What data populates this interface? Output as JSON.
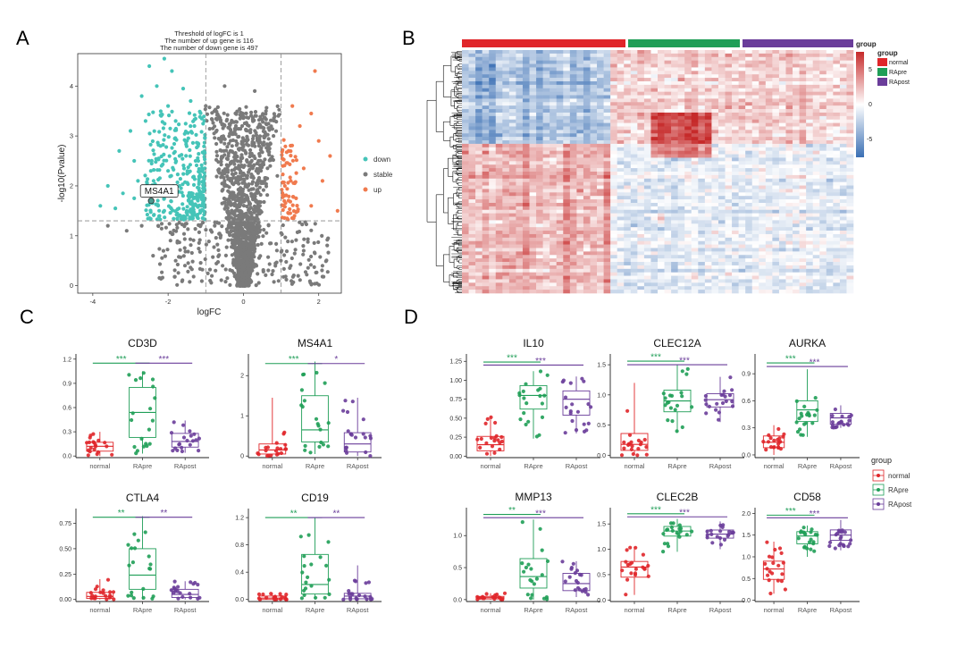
{
  "panels": {
    "A": {
      "letter": "A"
    },
    "B": {
      "letter": "B"
    },
    "C": {
      "letter": "C"
    },
    "D": {
      "letter": "D"
    }
  },
  "colors": {
    "normal": "#e0262a",
    "RApre": "#1f9e57",
    "RApost": "#6a3d9a",
    "down": "#45c4b8",
    "stable": "#7a7a7a",
    "up": "#f07a4e",
    "heat_low": "#3a6fb4",
    "heat_mid": "#ffffff",
    "heat_high": "#c62a2a"
  },
  "chart_data": [
    {
      "id": "volcano",
      "type": "scatter",
      "title_lines": [
        "Threshold of logFC is 1",
        "The number of up gene is 116",
        "The number of down gene is 497"
      ],
      "xlabel": "logFC",
      "ylabel": "-log10(Pvalue)",
      "xlim": [
        -4.4,
        2.6
      ],
      "ylim": [
        -0.15,
        4.65
      ],
      "xticks": [
        -4,
        -2,
        0,
        2
      ],
      "yticks": [
        0,
        1,
        2,
        3,
        4
      ],
      "thresholds": {
        "logFC": [
          -1,
          1
        ],
        "pvalue_line": 1.3
      },
      "legend": {
        "position": "right",
        "entries": [
          "down",
          "stable",
          "up"
        ]
      },
      "annotation": {
        "label": "MS4A1",
        "x": -2.45,
        "y": 1.7
      },
      "counts": {
        "up": 116,
        "down": 497
      },
      "points": {
        "down": [
          [
            -2.5,
            4.4
          ],
          [
            -2.1,
            4.55
          ],
          [
            -1.9,
            4.3
          ],
          [
            -2.3,
            4.0
          ],
          [
            -1.6,
            3.95
          ],
          [
            -2.7,
            3.8
          ],
          [
            -2.0,
            3.6
          ],
          [
            -1.4,
            3.7
          ],
          [
            -3.0,
            3.1
          ],
          [
            -2.6,
            3.3
          ],
          [
            -1.8,
            3.3
          ],
          [
            -1.3,
            3.2
          ],
          [
            -3.3,
            2.7
          ],
          [
            -2.9,
            2.5
          ],
          [
            -2.2,
            2.8
          ],
          [
            -1.5,
            2.9
          ],
          [
            -3.6,
            2.0
          ],
          [
            -3.2,
            1.85
          ],
          [
            -2.8,
            2.1
          ],
          [
            -2.0,
            2.3
          ],
          [
            -1.2,
            2.5
          ],
          [
            -3.8,
            1.6
          ],
          [
            -3.4,
            1.55
          ],
          [
            -2.9,
            1.75
          ],
          [
            -2.4,
            1.9
          ],
          [
            -1.7,
            2.0
          ],
          [
            -1.1,
            1.8
          ],
          [
            -2.1,
            1.5
          ],
          [
            -1.4,
            1.5
          ]
        ],
        "stable": [
          [
            -3.6,
            1.2
          ],
          [
            -3.1,
            1.1
          ],
          [
            -2.7,
            1.2
          ],
          [
            -1.0,
            3.6
          ],
          [
            -0.5,
            4.0
          ],
          [
            -0.2,
            3.2
          ],
          [
            0.3,
            3.9
          ],
          [
            0.6,
            3.5
          ],
          [
            0.8,
            3.0
          ],
          [
            -0.4,
            2.6
          ],
          [
            0.4,
            2.5
          ],
          [
            0.9,
            2.2
          ],
          [
            -2.4,
            0.6
          ],
          [
            -1.8,
            0.5
          ],
          [
            1.6,
            0.7
          ],
          [
            2.1,
            0.4
          ]
        ],
        "up": [
          [
            1.3,
            3.6
          ],
          [
            1.5,
            3.2
          ],
          [
            1.8,
            3.45
          ],
          [
            2.0,
            2.9
          ],
          [
            2.3,
            2.6
          ],
          [
            1.2,
            2.7
          ],
          [
            1.6,
            2.35
          ],
          [
            2.1,
            2.1
          ],
          [
            1.1,
            2.0
          ],
          [
            1.4,
            1.75
          ],
          [
            1.8,
            1.6
          ],
          [
            2.5,
            1.5
          ],
          [
            1.9,
            4.3
          ],
          [
            1.2,
            1.45
          ]
        ]
      }
    },
    {
      "id": "heatmap",
      "type": "heatmap",
      "groups": [
        "normal",
        "RApre",
        "RApost"
      ],
      "legend": {
        "title": "group",
        "position": "right",
        "entries": [
          "normal",
          "RApre",
          "RApost"
        ]
      },
      "scale": {
        "ticks": [
          "5",
          "0",
          "-5"
        ],
        "range": [
          -7,
          7
        ]
      },
      "blocks": [
        {
          "rows": [
            0,
            0.38
          ],
          "cols": [
            0,
            0.38
          ],
          "value": -1.5
        },
        {
          "rows": [
            0.38,
            1.0
          ],
          "cols": [
            0,
            0.38
          ],
          "value": 1.2
        },
        {
          "rows": [
            0.38,
            1.0
          ],
          "cols": [
            0.38,
            1.0
          ],
          "value": -0.4
        },
        {
          "rows": [
            0,
            0.38
          ],
          "cols": [
            0.38,
            1.0
          ],
          "value": 0.9
        },
        {
          "rows": [
            0.26,
            0.44
          ],
          "cols": [
            0.48,
            0.63
          ],
          "value": 2.6
        }
      ]
    },
    {
      "id": "CD3D",
      "type": "box",
      "panel": "C",
      "title": "CD3D",
      "categories": [
        "normal",
        "RApre",
        "RApost"
      ],
      "ylim": [
        -0.02,
        1.22
      ],
      "yticks": [
        0.0,
        0.3,
        0.6,
        0.9,
        1.2
      ],
      "tick_labels": [
        "0.0",
        "0.3",
        "0.6",
        "0.9",
        "1.2"
      ],
      "boxes": [
        {
          "group": "normal",
          "q1": 0.06,
          "median": 0.12,
          "q3": 0.17,
          "lo": 0.0,
          "hi": 0.3
        },
        {
          "group": "RApre",
          "q1": 0.23,
          "median": 0.54,
          "q3": 0.85,
          "lo": 0.03,
          "hi": 1.05
        },
        {
          "group": "RApost",
          "q1": 0.11,
          "median": 0.18,
          "q3": 0.28,
          "lo": 0.04,
          "hi": 0.44
        }
      ],
      "sig": [
        {
          "from": "normal",
          "to": "RApre",
          "label": "***",
          "y": 1.15,
          "group": "RApre"
        },
        {
          "from": "RApre",
          "to": "RApost",
          "label": "***",
          "y": 1.15,
          "group": "RApost"
        }
      ]
    },
    {
      "id": "MS4A1",
      "type": "box",
      "panel": "C",
      "title": "MS4A1",
      "categories": [
        "normal",
        "RApre",
        "RApost"
      ],
      "ylim": [
        -0.04,
        2.45
      ],
      "yticks": [
        0,
        1,
        2
      ],
      "tick_labels": [
        "0",
        "1",
        "2"
      ],
      "boxes": [
        {
          "group": "normal",
          "q1": 0.05,
          "median": 0.15,
          "q3": 0.3,
          "lo": 0.0,
          "hi": 1.45
        },
        {
          "group": "RApre",
          "q1": 0.35,
          "median": 0.65,
          "q3": 1.5,
          "lo": 0.05,
          "hi": 2.35
        },
        {
          "group": "RApost",
          "q1": 0.1,
          "median": 0.3,
          "q3": 0.58,
          "lo": 0.0,
          "hi": 1.45
        }
      ],
      "sig": [
        {
          "from": "normal",
          "to": "RApre",
          "label": "***",
          "y": 2.3,
          "group": "RApre"
        },
        {
          "from": "RApre",
          "to": "RApost",
          "label": "*",
          "y": 2.3,
          "group": "RApost"
        }
      ]
    },
    {
      "id": "CTLA4",
      "type": "box",
      "panel": "C",
      "title": "CTLA4",
      "categories": [
        "normal",
        "RApre",
        "RApost"
      ],
      "ylim": [
        -0.02,
        0.86
      ],
      "yticks": [
        0.0,
        0.25,
        0.5,
        0.75
      ],
      "tick_labels": [
        "0.00",
        "0.25",
        "0.50",
        "0.75"
      ],
      "boxes": [
        {
          "group": "normal",
          "q1": 0.01,
          "median": 0.03,
          "q3": 0.07,
          "lo": 0.0,
          "hi": 0.2
        },
        {
          "group": "RApre",
          "q1": 0.1,
          "median": 0.24,
          "q3": 0.5,
          "lo": 0.0,
          "hi": 0.82
        },
        {
          "group": "RApost",
          "q1": 0.02,
          "median": 0.05,
          "q3": 0.1,
          "lo": 0.0,
          "hi": 0.18
        }
      ],
      "sig": [
        {
          "from": "normal",
          "to": "RApre",
          "label": "**",
          "y": 0.81,
          "group": "RApre"
        },
        {
          "from": "RApre",
          "to": "RApost",
          "label": "**",
          "y": 0.81,
          "group": "RApost"
        }
      ]
    },
    {
      "id": "CD19",
      "type": "box",
      "panel": "C",
      "title": "CD19",
      "categories": [
        "normal",
        "RApre",
        "RApost"
      ],
      "ylim": [
        -0.03,
        1.28
      ],
      "yticks": [
        0.0,
        0.4,
        0.8,
        1.2
      ],
      "tick_labels": [
        "0.0",
        "0.4",
        "0.8",
        "1.2"
      ],
      "boxes": [
        {
          "group": "normal",
          "q1": 0.0,
          "median": 0.02,
          "q3": 0.05,
          "lo": 0.0,
          "hi": 0.1
        },
        {
          "group": "RApre",
          "q1": 0.08,
          "median": 0.22,
          "q3": 0.66,
          "lo": 0.0,
          "hi": 1.2
        },
        {
          "group": "RApost",
          "q1": 0.01,
          "median": 0.05,
          "q3": 0.09,
          "lo": 0.0,
          "hi": 0.5
        }
      ],
      "sig": [
        {
          "from": "normal",
          "to": "RApre",
          "label": "**",
          "y": 1.2,
          "group": "RApre"
        },
        {
          "from": "RApre",
          "to": "RApost",
          "label": "**",
          "y": 1.2,
          "group": "RApost"
        }
      ]
    },
    {
      "id": "IL10",
      "type": "box",
      "panel": "D",
      "title": "IL10",
      "categories": [
        "normal",
        "RApre",
        "RApost"
      ],
      "ylim": [
        -0.02,
        1.3
      ],
      "yticks": [
        0.0,
        0.25,
        0.5,
        0.75,
        1.0,
        1.25
      ],
      "tick_labels": [
        "0.00",
        "0.25",
        "0.50",
        "0.75",
        "1.00",
        "1.25"
      ],
      "boxes": [
        {
          "group": "normal",
          "q1": 0.07,
          "median": 0.15,
          "q3": 0.26,
          "lo": 0.0,
          "hi": 0.52
        },
        {
          "group": "RApre",
          "q1": 0.62,
          "median": 0.8,
          "q3": 0.93,
          "lo": 0.23,
          "hi": 1.12
        },
        {
          "group": "RApost",
          "q1": 0.54,
          "median": 0.75,
          "q3": 0.86,
          "lo": 0.3,
          "hi": 1.05
        }
      ],
      "sig": [
        {
          "from": "normal",
          "to": "RApre",
          "label": "***",
          "y": 1.24,
          "group": "RApre"
        },
        {
          "from": "normal",
          "to": "RApost",
          "label": "***",
          "y": 1.2,
          "group": "RApost"
        }
      ]
    },
    {
      "id": "CLEC12A",
      "type": "box",
      "panel": "D",
      "title": "CLEC12A",
      "categories": [
        "normal",
        "RApre",
        "RApost"
      ],
      "ylim": [
        -0.04,
        1.62
      ],
      "yticks": [
        0.0,
        0.5,
        1.0,
        1.5
      ],
      "tick_labels": [
        "0.0",
        "0.5",
        "1.0",
        "1.5"
      ],
      "boxes": [
        {
          "group": "normal",
          "q1": 0.08,
          "median": 0.18,
          "q3": 0.36,
          "lo": 0.0,
          "hi": 1.2
        },
        {
          "group": "RApre",
          "q1": 0.72,
          "median": 0.9,
          "q3": 1.08,
          "lo": 0.38,
          "hi": 1.5
        },
        {
          "group": "RApost",
          "q1": 0.8,
          "median": 0.92,
          "q3": 1.02,
          "lo": 0.55,
          "hi": 1.3
        }
      ],
      "sig": [
        {
          "from": "normal",
          "to": "RApre",
          "label": "***",
          "y": 1.56,
          "group": "RApre"
        },
        {
          "from": "normal",
          "to": "RApost",
          "label": "***",
          "y": 1.5,
          "group": "RApost"
        }
      ]
    },
    {
      "id": "AURKA",
      "type": "box",
      "panel": "D",
      "title": "AURKA",
      "categories": [
        "normal",
        "RApre",
        "RApost"
      ],
      "ylim": [
        -0.03,
        1.08
      ],
      "yticks": [
        0.0,
        0.3,
        0.6,
        0.9
      ],
      "tick_labels": [
        "0.0",
        "0.3",
        "0.6",
        "0.9"
      ],
      "boxes": [
        {
          "group": "normal",
          "q1": 0.08,
          "median": 0.14,
          "q3": 0.21,
          "lo": 0.0,
          "hi": 0.33
        },
        {
          "group": "RApre",
          "q1": 0.37,
          "median": 0.5,
          "q3": 0.6,
          "lo": 0.2,
          "hi": 0.95
        },
        {
          "group": "RApost",
          "q1": 0.34,
          "median": 0.41,
          "q3": 0.46,
          "lo": 0.3,
          "hi": 0.55
        }
      ],
      "sig": [
        {
          "from": "normal",
          "to": "RApre",
          "label": "***",
          "y": 1.02,
          "group": "RApre"
        },
        {
          "from": "normal",
          "to": "RApost",
          "label": "***",
          "y": 0.98,
          "group": "RApost"
        }
      ]
    },
    {
      "id": "MMP13",
      "type": "box",
      "panel": "D",
      "title": "MMP13",
      "categories": [
        "normal",
        "RApre",
        "RApost"
      ],
      "ylim": [
        -0.03,
        1.38
      ],
      "yticks": [
        0.0,
        0.5,
        1.0
      ],
      "tick_labels": [
        "0.0",
        "0.5",
        "1.0"
      ],
      "boxes": [
        {
          "group": "normal",
          "q1": 0.01,
          "median": 0.03,
          "q3": 0.05,
          "lo": 0.0,
          "hi": 0.1
        },
        {
          "group": "RApre",
          "q1": 0.18,
          "median": 0.36,
          "q3": 0.64,
          "lo": 0.0,
          "hi": 1.25
        },
        {
          "group": "RApost",
          "q1": 0.14,
          "median": 0.25,
          "q3": 0.41,
          "lo": 0.04,
          "hi": 0.6
        }
      ],
      "sig": [
        {
          "from": "normal",
          "to": "RApre",
          "label": "**",
          "y": 1.33,
          "group": "RApre"
        },
        {
          "from": "normal",
          "to": "RApost",
          "label": "***",
          "y": 1.28,
          "group": "RApost"
        }
      ]
    },
    {
      "id": "CLEC2B",
      "type": "box",
      "panel": "D",
      "title": "CLEC2B",
      "categories": [
        "normal",
        "RApre",
        "RApost"
      ],
      "ylim": [
        -0.03,
        1.75
      ],
      "yticks": [
        0.0,
        0.5,
        1.0,
        1.5
      ],
      "tick_labels": [
        "0.0",
        "0.5",
        "1.0",
        "1.5"
      ],
      "boxes": [
        {
          "group": "normal",
          "q1": 0.45,
          "median": 0.65,
          "q3": 0.76,
          "lo": 0.1,
          "hi": 1.05
        },
        {
          "group": "RApre",
          "q1": 1.26,
          "median": 1.36,
          "q3": 1.45,
          "lo": 0.95,
          "hi": 1.6
        },
        {
          "group": "RApost",
          "q1": 1.22,
          "median": 1.3,
          "q3": 1.38,
          "lo": 1.0,
          "hi": 1.55
        }
      ],
      "sig": [
        {
          "from": "normal",
          "to": "RApre",
          "label": "***",
          "y": 1.7,
          "group": "RApre"
        },
        {
          "from": "normal",
          "to": "RApost",
          "label": "***",
          "y": 1.64,
          "group": "RApost"
        }
      ]
    },
    {
      "id": "CD58",
      "type": "box",
      "panel": "D",
      "title": "CD58",
      "categories": [
        "normal",
        "RApre",
        "RApost"
      ],
      "ylim": [
        -0.03,
        2.05
      ],
      "yticks": [
        0.0,
        0.5,
        1.0,
        1.5,
        2.0
      ],
      "tick_labels": [
        "0.0",
        "0.5",
        "1.0",
        "1.5",
        "2.0"
      ],
      "boxes": [
        {
          "group": "normal",
          "q1": 0.48,
          "median": 0.72,
          "q3": 0.9,
          "lo": 0.15,
          "hi": 1.35
        },
        {
          "group": "RApre",
          "q1": 1.3,
          "median": 1.48,
          "q3": 1.58,
          "lo": 1.0,
          "hi": 1.72
        },
        {
          "group": "RApost",
          "q1": 1.38,
          "median": 1.5,
          "q3": 1.62,
          "lo": 1.15,
          "hi": 1.85
        }
      ],
      "sig": [
        {
          "from": "normal",
          "to": "RApre",
          "label": "***",
          "y": 1.96,
          "group": "RApre"
        },
        {
          "from": "normal",
          "to": "RApost",
          "label": "***",
          "y": 1.9,
          "group": "RApost"
        }
      ]
    }
  ],
  "group_legend": {
    "title": "group",
    "entries": [
      "normal",
      "RApre",
      "RApost"
    ]
  }
}
